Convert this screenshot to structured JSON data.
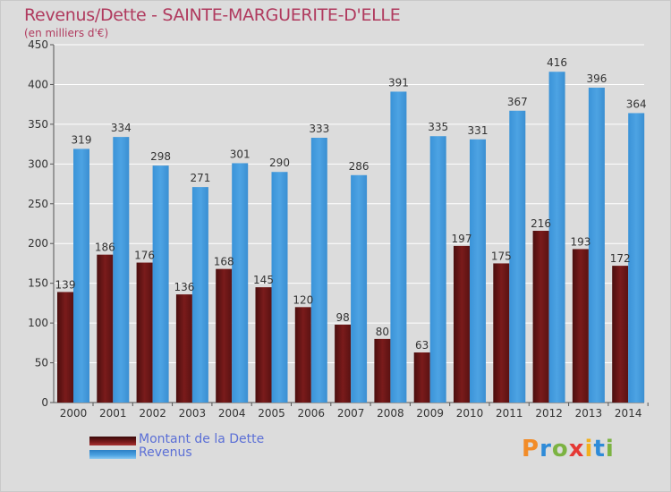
{
  "title": "Revenus/Dette - SAINTE-MARGUERITE-D'ELLE",
  "subtitle": "(en milliers d'€)",
  "logo": {
    "letters": [
      "P",
      "r",
      "o",
      "x",
      "i",
      "t",
      "i"
    ],
    "colors": [
      "#f28c28",
      "#2e8bd8",
      "#7cb342",
      "#e53935",
      "#f2b01e",
      "#2e8bd8",
      "#7cb342"
    ]
  },
  "colors": {
    "dette": "#7a1b1b",
    "revenus": "#4da3e3",
    "title": "#b03a5e",
    "legend_text": "#5b6fd6"
  },
  "chart_data": {
    "type": "bar",
    "title": "Revenus/Dette - SAINTE-MARGUERITE-D'ELLE",
    "ylabel": "(en milliers d'€)",
    "categories": [
      "2000",
      "2001",
      "2002",
      "2003",
      "2004",
      "2005",
      "2006",
      "2007",
      "2008",
      "2009",
      "2010",
      "2011",
      "2012",
      "2013",
      "2014"
    ],
    "series": [
      {
        "name": "Montant de la Dette",
        "values": [
          139,
          186,
          176,
          136,
          168,
          145,
          120,
          98,
          80,
          63,
          197,
          175,
          216,
          193,
          172
        ]
      },
      {
        "name": "Revenus",
        "values": [
          319,
          334,
          298,
          271,
          301,
          290,
          333,
          286,
          391,
          335,
          331,
          367,
          416,
          396,
          364
        ]
      }
    ],
    "ylim": [
      0,
      450
    ],
    "yticks": [
      0,
      50,
      100,
      150,
      200,
      250,
      300,
      350,
      400,
      450
    ],
    "grid": true,
    "legend_position": "bottom-left"
  }
}
